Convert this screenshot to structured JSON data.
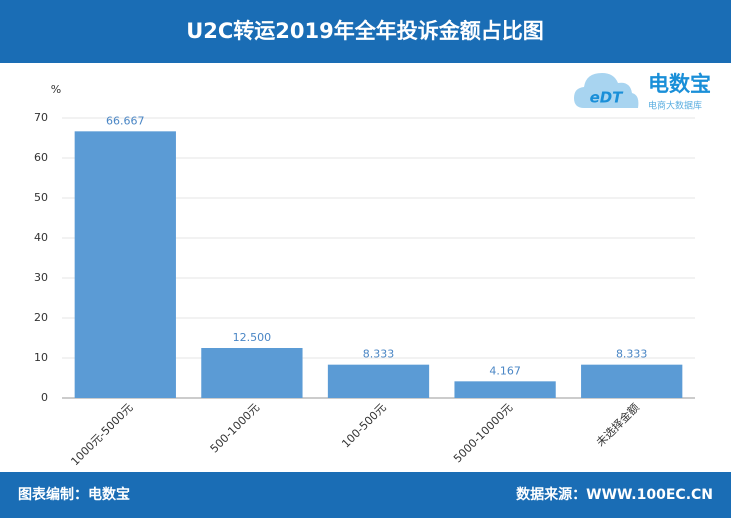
{
  "chart_data": {
    "type": "bar",
    "title": "U2C转运2019年全年投诉金额占比图",
    "y_label": "%",
    "categories": [
      "1000元-5000元",
      "500-1000元",
      "100-500元",
      "5000-10000元",
      "未选择金额"
    ],
    "values": [
      66.667,
      12.5,
      8.333,
      4.167,
      8.333
    ],
    "value_labels": [
      "66.667",
      "12.500",
      "8.333",
      "4.167",
      "8.333"
    ],
    "color": "#5b9bd5",
    "ylim": [
      0,
      70
    ],
    "yticks": [
      0,
      10,
      20,
      30,
      40,
      50,
      60,
      70
    ],
    "grid": true
  },
  "logo": {
    "mark": "eDT",
    "name": "电数宝",
    "tagline": "电商大数据库"
  },
  "footer": {
    "left": "图表编制：电数宝",
    "right": "数据来源：WWW.100EC.CN"
  }
}
